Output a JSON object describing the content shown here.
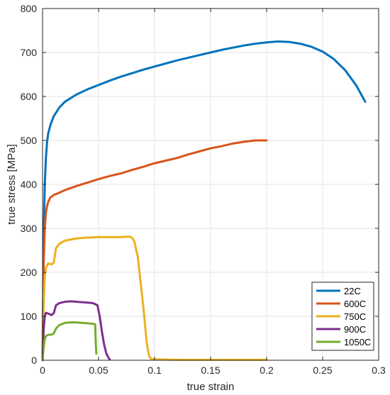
{
  "chart_data": {
    "type": "line",
    "title": "",
    "xlabel": "true strain",
    "ylabel": "true stress [MPa]",
    "xlim": [
      0,
      0.3
    ],
    "ylim": [
      0,
      800
    ],
    "xticks": [
      0,
      0.05,
      0.1,
      0.15,
      0.2,
      0.25,
      0.3
    ],
    "xtick_labels": [
      "0",
      "0.05",
      "0.1",
      "0.15",
      "0.2",
      "0.25",
      "0.3"
    ],
    "yticks": [
      0,
      100,
      200,
      300,
      400,
      500,
      600,
      700,
      800
    ],
    "ytick_labels": [
      "0",
      "100",
      "200",
      "300",
      "400",
      "500",
      "600",
      "700",
      "800"
    ],
    "grid": true,
    "legend_position": "bottom-right",
    "series": [
      {
        "name": "22C",
        "color": "#0072BD",
        "x": [
          0,
          0.001,
          0.002,
          0.003,
          0.004,
          0.005,
          0.007,
          0.01,
          0.015,
          0.02,
          0.03,
          0.04,
          0.05,
          0.06,
          0.07,
          0.08,
          0.09,
          0.1,
          0.11,
          0.12,
          0.13,
          0.14,
          0.15,
          0.16,
          0.17,
          0.18,
          0.19,
          0.2,
          0.21,
          0.22,
          0.23,
          0.24,
          0.25,
          0.26,
          0.27,
          0.28,
          0.288
        ],
        "y": [
          0,
          280,
          400,
          460,
          495,
          515,
          535,
          555,
          575,
          588,
          604,
          616,
          626,
          636,
          645,
          653,
          661,
          668,
          675,
          682,
          688,
          694,
          700,
          706,
          711,
          716,
          720,
          723,
          725,
          724,
          720,
          713,
          702,
          685,
          660,
          625,
          588
        ]
      },
      {
        "name": "600C",
        "color": "#D95319",
        "x": [
          0,
          0.001,
          0.002,
          0.003,
          0.004,
          0.005,
          0.007,
          0.01,
          0.015,
          0.02,
          0.03,
          0.04,
          0.05,
          0.06,
          0.07,
          0.08,
          0.09,
          0.1,
          0.11,
          0.12,
          0.13,
          0.14,
          0.15,
          0.16,
          0.17,
          0.18,
          0.19,
          0.2
        ],
        "y": [
          0,
          220,
          300,
          335,
          350,
          360,
          370,
          376,
          381,
          387,
          396,
          404,
          412,
          419,
          425,
          433,
          440,
          448,
          454,
          460,
          468,
          475,
          482,
          487,
          493,
          497,
          500,
          500
        ]
      },
      {
        "name": "750C",
        "color": "#EDB120",
        "x": [
          0,
          0.001,
          0.002,
          0.003,
          0.005,
          0.008,
          0.01,
          0.012,
          0.015,
          0.02,
          0.03,
          0.04,
          0.05,
          0.06,
          0.07,
          0.075,
          0.078,
          0.08,
          0.082,
          0.085,
          0.09,
          0.093,
          0.095,
          0.097,
          0.1,
          0.12,
          0.15,
          0.18,
          0.2
        ],
        "y": [
          0,
          130,
          190,
          210,
          220,
          218,
          222,
          255,
          265,
          272,
          277,
          279,
          280,
          280,
          280,
          281,
          281,
          278,
          270,
          235,
          120,
          40,
          10,
          3,
          2,
          1,
          1,
          1,
          1
        ]
      },
      {
        "name": "900C",
        "color": "#7E2F8E",
        "x": [
          0,
          0.001,
          0.002,
          0.003,
          0.005,
          0.008,
          0.01,
          0.012,
          0.015,
          0.02,
          0.025,
          0.03,
          0.035,
          0.04,
          0.045,
          0.049,
          0.051,
          0.053,
          0.055,
          0.057,
          0.059,
          0.06
        ],
        "y": [
          0,
          70,
          100,
          108,
          106,
          103,
          107,
          125,
          130,
          133,
          134,
          133,
          132,
          131,
          130,
          125,
          100,
          65,
          35,
          15,
          5,
          2
        ]
      },
      {
        "name": "1050C",
        "color": "#77AC30",
        "x": [
          0,
          0.001,
          0.002,
          0.003,
          0.005,
          0.008,
          0.01,
          0.012,
          0.015,
          0.02,
          0.025,
          0.03,
          0.035,
          0.04,
          0.045,
          0.047,
          0.0475,
          0.048
        ],
        "y": [
          0,
          30,
          48,
          55,
          58,
          58,
          61,
          72,
          80,
          85,
          86,
          86,
          85,
          84,
          83,
          82,
          40,
          15
        ]
      }
    ]
  }
}
